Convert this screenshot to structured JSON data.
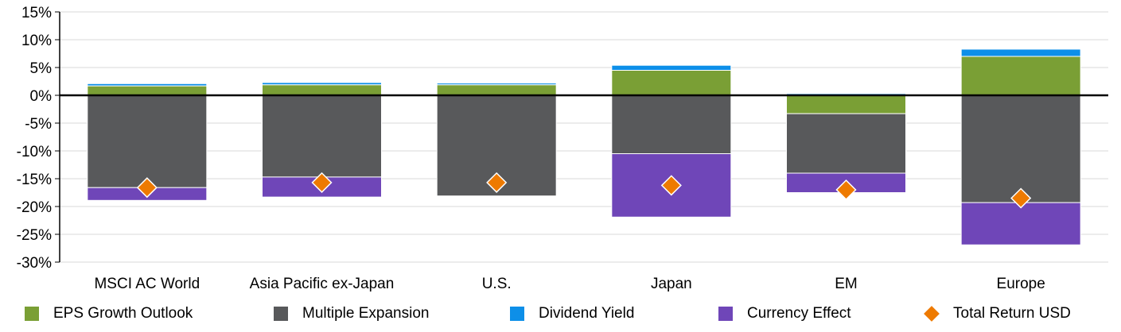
{
  "chart_data": {
    "type": "bar",
    "stacked": true,
    "categories": [
      "MSCI AC World",
      "Asia Pacific ex-Japan",
      "U.S.",
      "Japan",
      "EM",
      "Europe"
    ],
    "ylim": [
      -30,
      15
    ],
    "yticks": [
      15,
      10,
      5,
      0,
      -5,
      -10,
      -15,
      -20,
      -25,
      -30
    ],
    "ytick_labels": [
      "15%",
      "10%",
      "5%",
      "0%",
      "-5%",
      "-10%",
      "-15%",
      "-20%",
      "-25%",
      "-30%"
    ],
    "grid": true,
    "legend_position": "bottom",
    "series": [
      {
        "name": "EPS Growth Outlook",
        "color": "#7a9f35",
        "values": [
          1.7,
          1.9,
          1.9,
          4.5,
          -3.3,
          7.0
        ]
      },
      {
        "name": "Multiple Expansion",
        "color": "#58595b",
        "values": [
          -16.6,
          -14.7,
          -18.1,
          -10.5,
          -10.7,
          -19.3
        ]
      },
      {
        "name": "Dividend Yield",
        "color": "#0d8fe8",
        "values": [
          0.4,
          0.4,
          0.3,
          0.9,
          0.3,
          1.3
        ]
      },
      {
        "name": "Currency Effect",
        "color": "#6f46b8",
        "values": [
          -2.3,
          -3.6,
          0.0,
          -11.4,
          -3.5,
          -7.6
        ]
      }
    ],
    "total_return": {
      "name": "Total Return USD",
      "color": "#ee7a00",
      "values": [
        -16.6,
        -15.7,
        -15.7,
        -16.2,
        -17.0,
        -18.5
      ]
    }
  }
}
